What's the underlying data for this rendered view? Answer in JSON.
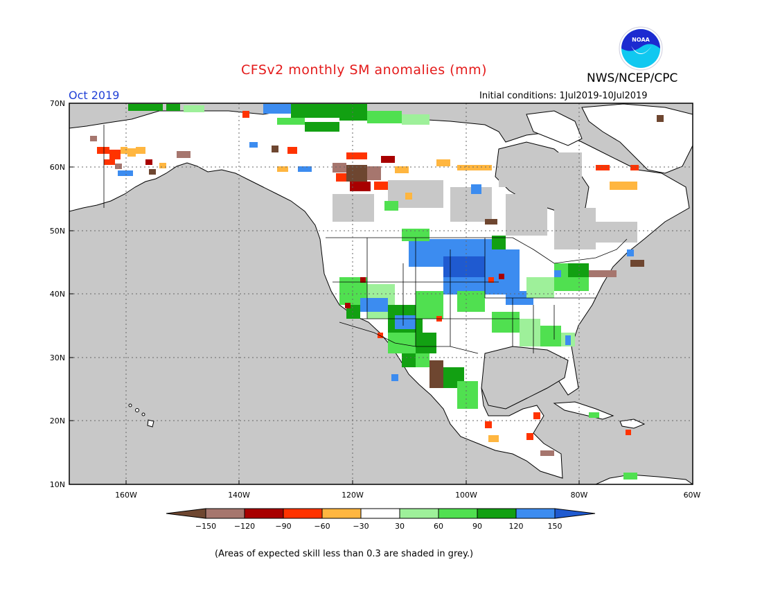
{
  "header": {
    "title": "CFSv2 monthly SM anomalies (mm)",
    "agency": "NWS/NCEP/CPC",
    "logo_text": "NOAA",
    "month": "Oct 2019",
    "initial_conditions": "Initial conditions: 1Jul2019-10Jul2019"
  },
  "map": {
    "lat_labels": [
      "70N",
      "60N",
      "50N",
      "40N",
      "30N",
      "20N",
      "10N"
    ],
    "lon_labels": [
      "160W",
      "140W",
      "120W",
      "100W",
      "80W",
      "60W"
    ],
    "ocean_color": "#c8c8c8",
    "land_color": "#ffffff",
    "coast_color": "#000000"
  },
  "legend": {
    "tick_labels": [
      "-150",
      "-120",
      "-90",
      "-60",
      "-30",
      "30",
      "60",
      "90",
      "120",
      "150"
    ],
    "colors": [
      "#6e4630",
      "#a6766e",
      "#a80000",
      "#ff3300",
      "#ffb640",
      "#ffffff",
      "#9ef09a",
      "#50e050",
      "#12a012",
      "#3c8cf0",
      "#1f5ad0"
    ]
  },
  "footnote": "(Areas of expected skill less than 0.3 are shaded in grey.)"
}
